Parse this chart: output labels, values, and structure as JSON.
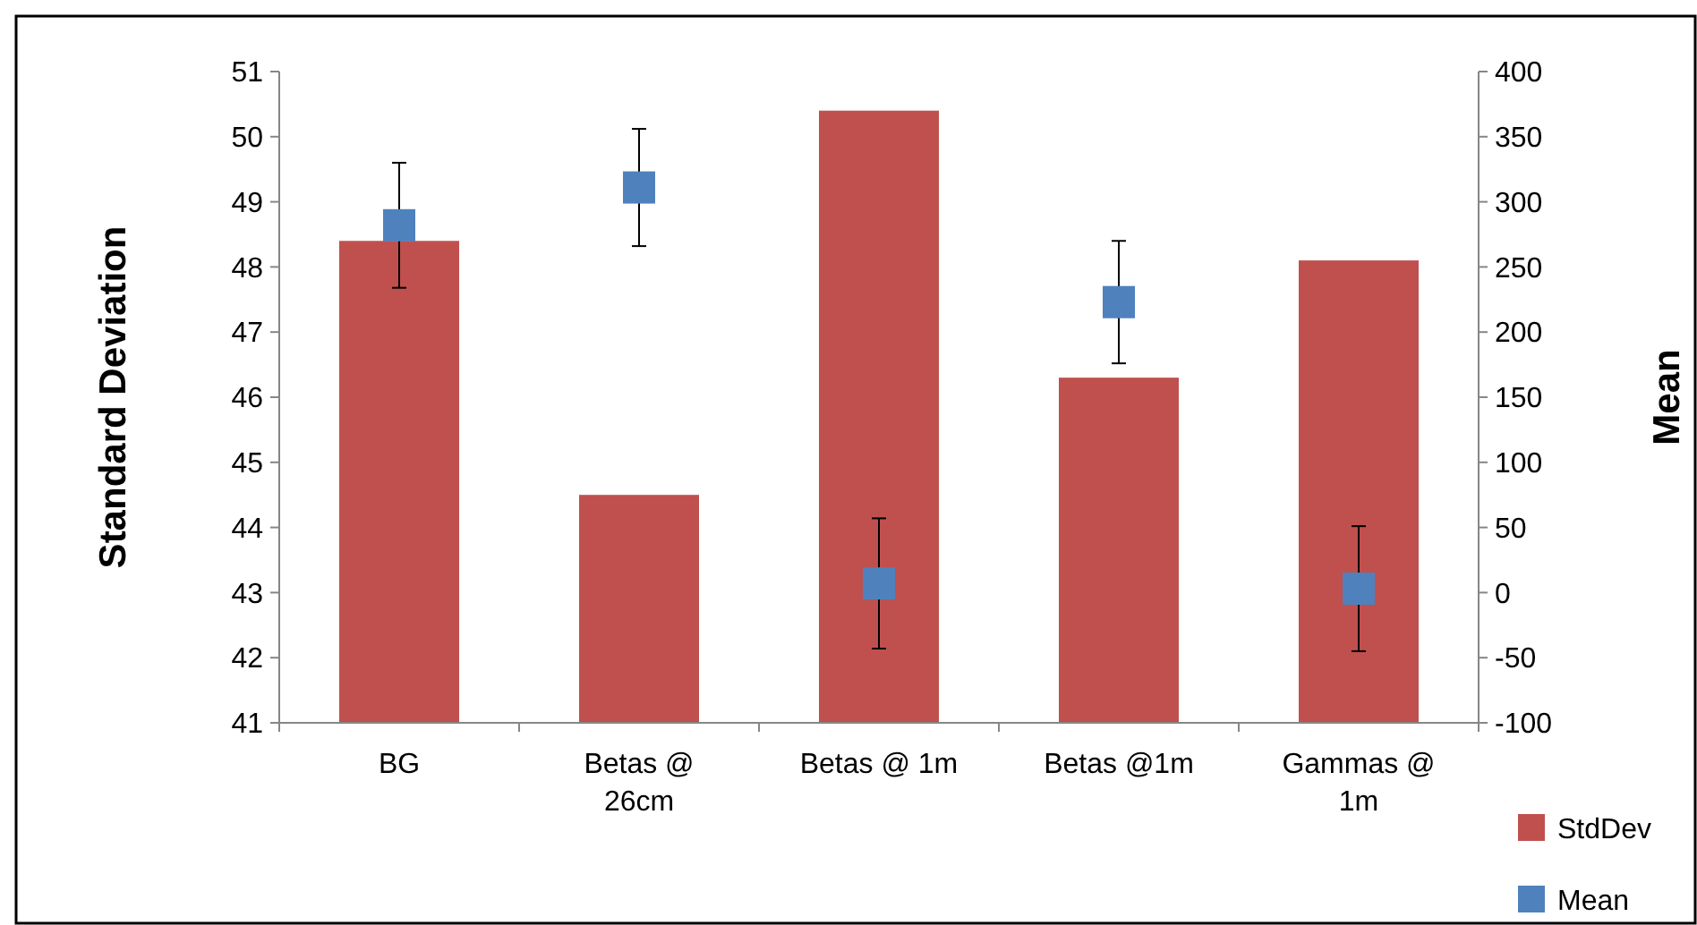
{
  "chart_data": {
    "type": "bar",
    "categories": [
      "BG",
      "Betas @ 26cm",
      "Betas @ 1m",
      "Betas @1m",
      "Gammas @ 1m"
    ],
    "ylabel": "Standard Deviation",
    "y2label": "Mean",
    "ylim": [
      41,
      51
    ],
    "yticks": [
      41,
      42,
      43,
      44,
      45,
      46,
      47,
      48,
      49,
      50,
      51
    ],
    "y2lim": [
      -100,
      400
    ],
    "y2ticks": [
      -100,
      -50,
      0,
      50,
      100,
      150,
      200,
      250,
      300,
      350,
      400
    ],
    "series": [
      {
        "name": "StdDev",
        "color": "#c0504d",
        "values": [
          48.4,
          44.5,
          50.4,
          46.3,
          48.1
        ]
      },
      {
        "name": "Mean",
        "type": "scatter",
        "axis": "y2",
        "marker": "square",
        "color": "#4f81bd",
        "values": [
          282,
          311,
          7,
          223,
          3
        ],
        "errors": [
          48,
          45,
          50,
          47,
          48
        ]
      }
    ],
    "legend": "right",
    "grid": false
  }
}
